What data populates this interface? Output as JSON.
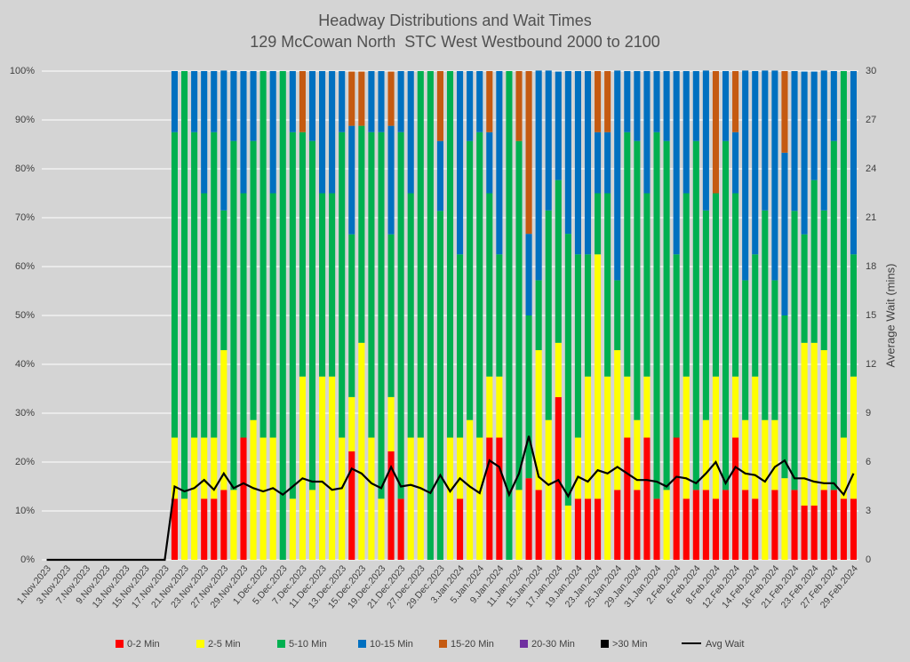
{
  "chart_data": {
    "type": "bar",
    "stacked": true,
    "title": "Headway Distributions and Wait Times",
    "subtitle": "129 McCowan North  STC West Westbound 2000 to 2100",
    "y2label": "Average Wait (mins)",
    "categories": [
      "1.Nov.2023",
      null,
      "3.Nov.2023",
      null,
      "7.Nov.2023",
      null,
      "9.Nov.2023",
      null,
      "13.Nov.2023",
      null,
      "15.Nov.2023",
      null,
      "17.Nov.2023",
      null,
      "21.Nov.2023",
      null,
      "23.Nov.2023",
      null,
      "27.Nov.2023",
      null,
      "29.Nov.2023",
      null,
      "1.Dec.2023",
      null,
      "5.Dec.2023",
      null,
      "7.Dec.2023",
      null,
      "11.Dec.2023",
      null,
      "13.Dec.2023",
      null,
      "15.Dec.2023",
      null,
      "19.Dec.2023",
      null,
      "21.Dec.2023",
      null,
      "27.Dec.2023",
      null,
      "29.Dec.2023",
      null,
      "3.Jan.2024",
      null,
      "5.Jan.2024",
      null,
      "9.Jan.2024",
      null,
      "11.Jan.2024",
      null,
      "15.Jan.2024",
      null,
      "17.Jan.2024",
      null,
      "19.Jan.2024",
      null,
      "23.Jan.2024",
      null,
      "25.Jan.2024",
      null,
      "29.Jan.2024",
      null,
      "31.Jan.2024",
      null,
      "2.Feb.2024",
      null,
      "6.Feb.2024",
      null,
      "8.Feb.2024",
      null,
      "12.Feb.2024",
      null,
      "14.Feb.2024",
      null,
      "16.Feb.2024",
      null,
      "21.Feb.2024",
      null,
      "23.Feb.2024",
      null,
      "27.Feb.2024",
      null,
      "29.Feb.2024"
    ],
    "ylim": [
      0,
      100
    ],
    "yticks": [
      {
        "value": 0,
        "label": "0%"
      },
      {
        "value": 10,
        "label": "10%"
      },
      {
        "value": 20,
        "label": "20%"
      },
      {
        "value": 30,
        "label": "30%"
      },
      {
        "value": 40,
        "label": "40%"
      },
      {
        "value": 50,
        "label": "50%"
      },
      {
        "value": 60,
        "label": "60%"
      },
      {
        "value": 70,
        "label": "70%"
      },
      {
        "value": 80,
        "label": "80%"
      },
      {
        "value": 90,
        "label": "90%"
      },
      {
        "value": 100,
        "label": "100%"
      }
    ],
    "y2lim": [
      0,
      30
    ],
    "y2ticks": [
      0,
      3,
      6,
      9,
      12,
      15,
      18,
      21,
      24,
      27,
      30
    ],
    "grid": true,
    "legend": "bottom",
    "series": [
      {
        "name": "0-2 Min",
        "color": "#ff0000",
        "values": [
          0,
          0,
          0,
          0,
          0,
          0,
          0,
          0,
          0,
          0,
          0,
          0,
          0,
          12.5,
          0,
          0,
          12.5,
          12.5,
          14.3,
          0,
          25,
          0,
          0,
          0,
          0,
          0,
          0,
          0,
          0,
          0,
          0,
          22.2,
          0,
          0,
          0,
          22.2,
          12.5,
          0,
          0,
          0,
          0,
          0,
          12.5,
          0,
          0,
          25,
          25,
          0,
          0,
          16.7,
          14.3,
          0,
          33.3,
          0,
          12.5,
          12.5,
          12.5,
          0,
          14.3,
          25,
          14.3,
          25,
          12.5,
          0,
          25,
          12.5,
          14.3,
          14.3,
          12.5,
          14.3,
          25,
          14.3,
          12.5,
          0,
          14.3,
          0,
          14.3,
          11.1,
          11.1,
          14.3,
          14.3,
          12.5,
          12.5
        ]
      },
      {
        "name": "2-5 Min",
        "color": "#ffff00",
        "values": [
          0,
          0,
          0,
          0,
          0,
          0,
          0,
          0,
          0,
          0,
          0,
          0,
          0,
          12.5,
          12.5,
          25,
          12.5,
          12.5,
          28.6,
          14.3,
          0,
          28.6,
          25,
          25,
          0,
          12.5,
          37.5,
          14.3,
          37.5,
          37.5,
          25,
          11.1,
          44.4,
          25,
          12.5,
          11.1,
          0,
          25,
          25,
          0,
          0,
          25,
          12.5,
          28.6,
          25,
          12.5,
          12.5,
          0,
          14.3,
          0,
          28.6,
          28.6,
          11.1,
          11.1,
          12.5,
          25,
          50,
          37.5,
          28.6,
          12.5,
          14.3,
          12.5,
          0,
          14.3,
          0,
          25,
          0,
          14.3,
          25,
          0,
          12.5,
          14.3,
          25,
          28.6,
          14.3,
          16.7,
          0,
          33.3,
          33.3,
          28.6,
          0,
          12.5,
          25
        ]
      },
      {
        "name": "5-10 Min",
        "color": "#00b050",
        "values": [
          0,
          0,
          0,
          0,
          0,
          0,
          0,
          0,
          0,
          0,
          0,
          0,
          0,
          62.5,
          87.5,
          62.5,
          50,
          62.5,
          28.6,
          71.4,
          50,
          57.1,
          75,
          50,
          100,
          75,
          50,
          71.4,
          37.5,
          37.5,
          62.5,
          33.3,
          44.4,
          62.5,
          75,
          33.3,
          75,
          50,
          75,
          100,
          71.4,
          75,
          37.5,
          57.1,
          62.5,
          37.5,
          25,
          100,
          71.4,
          33.3,
          14.3,
          42.9,
          33.3,
          55.6,
          37.5,
          25,
          12.5,
          37.5,
          14.3,
          50,
          57.1,
          37.5,
          75,
          71.4,
          37.5,
          37.5,
          71.4,
          42.9,
          37.5,
          71.4,
          37.5,
          28.6,
          25,
          42.9,
          28.6,
          33.3,
          57.1,
          22.2,
          33.3,
          28.6,
          71.4,
          75,
          25
        ]
      },
      {
        "name": "10-15 Min",
        "color": "#0070c0",
        "values": [
          0,
          0,
          0,
          0,
          0,
          0,
          0,
          0,
          0,
          0,
          0,
          0,
          0,
          12.5,
          0,
          12.5,
          25,
          12.5,
          28.6,
          14.3,
          25,
          14.3,
          0,
          25,
          0,
          12.5,
          0,
          14.3,
          25,
          25,
          12.5,
          22.2,
          0,
          12.5,
          12.5,
          22.2,
          12.5,
          25,
          0,
          0,
          14.3,
          0,
          37.5,
          14.3,
          12.5,
          12.5,
          37.5,
          0,
          0,
          16.7,
          42.9,
          28.6,
          22.2,
          33.3,
          37.5,
          37.5,
          12.5,
          12.5,
          42.9,
          12.5,
          14.3,
          25,
          12.5,
          14.3,
          37.5,
          25,
          14.3,
          28.6,
          0,
          14.3,
          12.5,
          42.9,
          37.5,
          28.6,
          42.9,
          33.3,
          28.6,
          33.3,
          22.2,
          28.6,
          14.3,
          0,
          37.5
        ]
      },
      {
        "name": "15-20 Min",
        "color": "#c55a11",
        "values": [
          0,
          0,
          0,
          0,
          0,
          0,
          0,
          0,
          0,
          0,
          0,
          0,
          0,
          0,
          0,
          0,
          0,
          0,
          0,
          0,
          0,
          0,
          0,
          0,
          0,
          0,
          12.5,
          0,
          0,
          0,
          0,
          11.1,
          11.1,
          0,
          0,
          11.1,
          0,
          0,
          0,
          0,
          14.3,
          0,
          0,
          0,
          0,
          12.5,
          0,
          0,
          14.3,
          33.3,
          0,
          0,
          0,
          0,
          0,
          0,
          12.5,
          12.5,
          0,
          0,
          0,
          0,
          0,
          0,
          0,
          0,
          0,
          0,
          25,
          0,
          12.5,
          0,
          0,
          0,
          0,
          16.7,
          0,
          0,
          0,
          0,
          0,
          0,
          0
        ]
      },
      {
        "name": "20-30 Min",
        "color": "#7030a0",
        "values": [
          0,
          0,
          0,
          0,
          0,
          0,
          0,
          0,
          0,
          0,
          0,
          0,
          0,
          0,
          0,
          0,
          0,
          0,
          0,
          0,
          0,
          0,
          0,
          0,
          0,
          0,
          0,
          0,
          0,
          0,
          0,
          0,
          0,
          0,
          0,
          0,
          0,
          0,
          0,
          0,
          0,
          0,
          0,
          0,
          0,
          0,
          0,
          0,
          0,
          0,
          0,
          0,
          0,
          0,
          0,
          0,
          0,
          0,
          0,
          0,
          0,
          0,
          0,
          0,
          0,
          0,
          0,
          0,
          0,
          0,
          0,
          0,
          0,
          0,
          0,
          0,
          0,
          0,
          0,
          0,
          0,
          0,
          0
        ]
      },
      {
        "name": ">30 Min",
        "color": "#000000",
        "values": [
          0,
          0,
          0,
          0,
          0,
          0,
          0,
          0,
          0,
          0,
          0,
          0,
          0,
          0,
          0,
          0,
          0,
          0,
          0,
          0,
          0,
          0,
          0,
          0,
          0,
          0,
          0,
          0,
          0,
          0,
          0,
          0,
          0,
          0,
          0,
          0,
          0,
          0,
          0,
          0,
          0,
          0,
          0,
          0,
          0,
          0,
          0,
          0,
          0,
          0,
          0,
          0,
          0,
          0,
          0,
          0,
          0,
          0,
          0,
          0,
          0,
          0,
          0,
          0,
          0,
          0,
          0,
          0,
          0,
          0,
          0,
          0,
          0,
          0,
          0,
          0,
          0,
          0,
          0,
          0,
          0,
          0,
          0
        ]
      },
      {
        "name": "Avg Wait",
        "color": "#000000",
        "type": "line",
        "axis": "y2",
        "values": [
          0,
          0,
          0,
          0,
          0,
          0,
          0,
          0,
          0,
          0,
          0,
          0,
          0,
          4.5,
          4.2,
          4.4,
          4.9,
          4.3,
          5.3,
          4.4,
          4.7,
          4.4,
          4.2,
          4.4,
          4.0,
          4.5,
          5.0,
          4.8,
          4.8,
          4.3,
          4.4,
          5.6,
          5.3,
          4.7,
          4.4,
          5.7,
          4.5,
          4.6,
          4.4,
          4.1,
          5.2,
          4.2,
          5.0,
          4.5,
          4.1,
          6.1,
          5.7,
          4.0,
          5.3,
          7.6,
          5.1,
          4.6,
          4.9,
          3.9,
          5.1,
          4.8,
          5.5,
          5.3,
          5.7,
          5.3,
          4.9,
          4.9,
          4.8,
          4.5,
          5.1,
          5.0,
          4.7,
          5.3,
          6.0,
          4.7,
          5.7,
          5.3,
          5.2,
          4.8,
          5.7,
          6.1,
          5.0,
          5.0,
          4.8,
          4.7,
          4.7,
          4.0,
          5.3
        ]
      }
    ]
  }
}
